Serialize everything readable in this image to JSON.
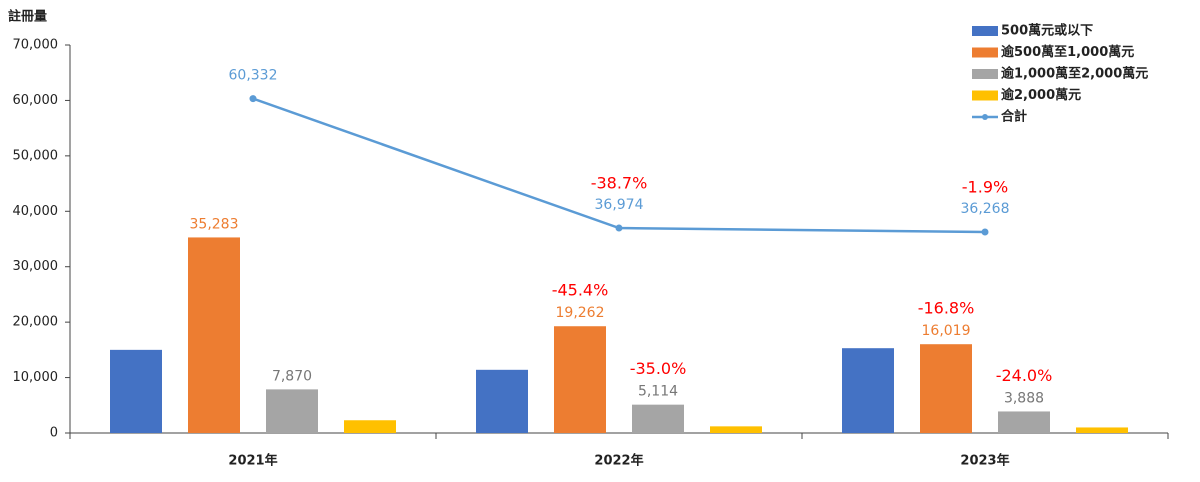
{
  "chart_data": {
    "type": "bar",
    "y_label": "註冊量",
    "categories": [
      "2021年",
      "2022年",
      "2023年"
    ],
    "ylim": [
      0,
      70000
    ],
    "yticks": [
      0,
      {
        "value": 10000,
        "label": "10,000"
      },
      {
        "value": 20000,
        "label": "20,000"
      },
      {
        "value": 30000,
        "label": "30,000"
      },
      {
        "value": 40000,
        "label": "40,000"
      },
      {
        "value": 50000,
        "label": "50,000"
      },
      {
        "value": 60000,
        "label": "60,000"
      },
      {
        "value": 70000,
        "label": "70,000"
      }
    ],
    "legend": "upper right",
    "series": [
      {
        "name": "500萬元或以下",
        "color": "#4472c4",
        "type": "bar",
        "values": [
          15000,
          11400,
          15300
        ]
      },
      {
        "name": "逾500萬至1,000萬元",
        "color": "#ed7d31",
        "type": "bar",
        "values": [
          35283,
          19262,
          16019
        ],
        "value_labels": [
          "35,283",
          "19,262",
          "16,019"
        ],
        "changes": [
          null,
          "-45.4%",
          "-16.8%"
        ]
      },
      {
        "name": "逾1,000萬至2,000萬元",
        "color": "#a5a5a5",
        "type": "bar",
        "values": [
          7870,
          5114,
          3888
        ],
        "value_labels": [
          "7,870",
          "5,114",
          "3,888"
        ],
        "changes": [
          null,
          "-35.0%",
          "-24.0%"
        ]
      },
      {
        "name": "逾2,000萬元",
        "color": "#ffc000",
        "type": "bar",
        "values": [
          2300,
          1200,
          1000
        ]
      },
      {
        "name": "合計",
        "color": "#5b9bd5",
        "type": "line",
        "values": [
          60332,
          36974,
          36268
        ],
        "value_labels": [
          "60,332",
          "36,974",
          "36,268"
        ],
        "changes": [
          null,
          "-38.7%",
          "-1.9%"
        ]
      }
    ],
    "change_color": "#ff0000"
  }
}
